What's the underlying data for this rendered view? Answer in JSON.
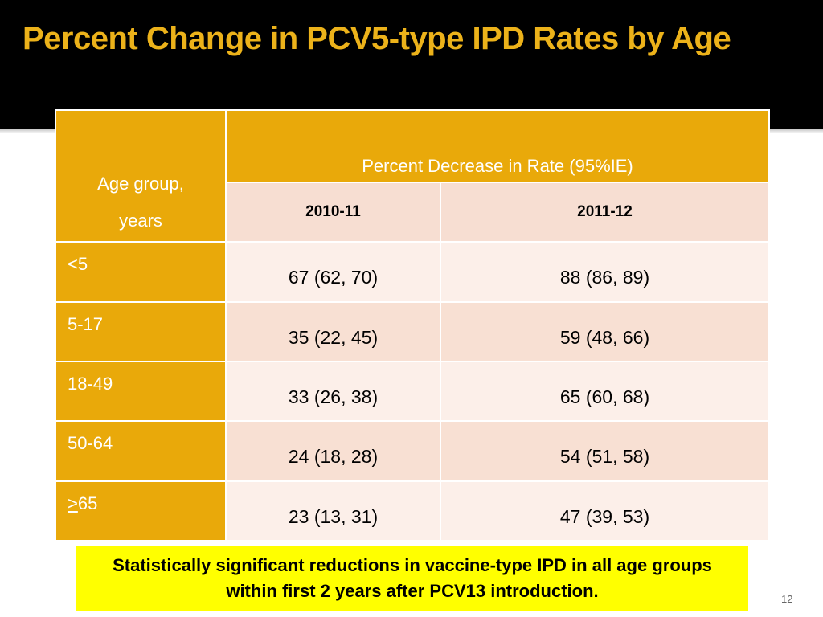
{
  "slide": {
    "title": "Percent Change in PCV5-type IPD Rates by Age",
    "slide_number": "12"
  },
  "table": {
    "age_header_line1": "Age group,",
    "age_header_line2": "years",
    "group_header": "Percent Decrease in Rate (95%IE)",
    "years": [
      "2010-11",
      "2011-12"
    ],
    "rows": [
      {
        "age_prefix": "",
        "age": "<5",
        "v1": "67 (62, 70)",
        "v2": "88 (86, 89)"
      },
      {
        "age_prefix": "",
        "age": "5-17",
        "v1": "35 (22, 45)",
        "v2": "59 (48, 66)"
      },
      {
        "age_prefix": "",
        "age": "18-49",
        "v1": "33 (26, 38)",
        "v2": "65 (60, 68)"
      },
      {
        "age_prefix": "",
        "age": "50-64",
        "v1": "24 (18, 28)",
        "v2": "54 (51, 58)"
      },
      {
        "age_prefix": ">",
        "age": "65",
        "v1": "23 (13, 31)",
        "v2": "47 (39, 53)"
      }
    ]
  },
  "note": "Statistically significant reductions in vaccine-type IPD in all age groups within first 2 years after PCV13 introduction.",
  "colors": {
    "title_band": "#000000",
    "title_text": "#ecb21a",
    "header_fill": "#e9a90a",
    "row_light": "#fcefe9",
    "row_dark": "#f8e0d3",
    "note_fill": "#ffff00"
  }
}
